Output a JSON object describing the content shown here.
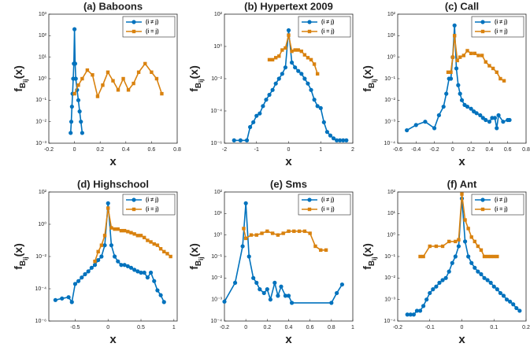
{
  "chart_data": [
    {
      "type": "line",
      "title": "(a)  Baboons",
      "xlabel": "x",
      "ylabel": [
        "f",
        "B",
        "ij",
        "(x)"
      ],
      "log_y": true,
      "legend": "upper right",
      "xlim": [
        -0.2,
        0.8
      ],
      "xticks": [
        -0.2,
        0,
        0.2,
        0.4,
        0.6,
        0.8
      ],
      "ylim": [
        0.001,
        1000
      ],
      "yticks": [
        {
          "value": 0.001,
          "label": "10⁻³"
        },
        {
          "value": 0.01,
          "label": "10⁻²"
        },
        {
          "value": 0.1,
          "label": "10⁻¹"
        },
        {
          "value": 1,
          "label": "10⁰"
        },
        {
          "value": 10,
          "label": "10¹"
        },
        {
          "value": 100,
          "label": "10²"
        },
        {
          "value": 1000,
          "label": "10³"
        }
      ],
      "series": [
        {
          "name": "(i ≠ j)",
          "color": "#0072bd",
          "marker": "circle",
          "x": [
            -0.03,
            -0.025,
            -0.02,
            -0.015,
            -0.01,
            -0.005,
            0,
            0.005,
            0.01,
            0.02,
            0.03,
            0.04,
            0.05,
            0.06
          ],
          "values": [
            0.003,
            0.01,
            0.05,
            0.2,
            1,
            5,
            200,
            5,
            1,
            0.3,
            0.1,
            0.03,
            0.01,
            0.003
          ]
        },
        {
          "name": "(i = j)",
          "color": "#d9820f",
          "marker": "square",
          "x": [
            0,
            0.03,
            0.06,
            0.1,
            0.14,
            0.18,
            0.22,
            0.26,
            0.3,
            0.34,
            0.38,
            0.42,
            0.46,
            0.5,
            0.55,
            0.6,
            0.64,
            0.68
          ],
          "values": [
            0.2,
            0.5,
            1,
            2.5,
            1.5,
            0.15,
            0.5,
            2,
            0.8,
            0.3,
            1,
            0.3,
            0.6,
            2,
            5,
            2,
            1,
            0.2
          ]
        }
      ]
    },
    {
      "type": "line",
      "title": "(b)  Hypertext 2009",
      "xlabel": "x",
      "ylabel": [
        "f",
        "B",
        "ij",
        "(x)"
      ],
      "log_y": true,
      "legend": "upper right",
      "xlim": [
        -2,
        2
      ],
      "xticks": [
        -2,
        -1,
        0,
        1,
        2
      ],
      "ylim": [
        1e-06,
        100
      ],
      "yticks": [
        {
          "value": 1e-06,
          "label": "10⁻⁶"
        },
        {
          "value": 0.0001,
          "label": "10⁻⁴"
        },
        {
          "value": 0.01,
          "label": "10⁻²"
        },
        {
          "value": 1,
          "label": "10⁰"
        },
        {
          "value": 100,
          "label": "10²"
        }
      ],
      "series": [
        {
          "name": "(i ≠ j)",
          "color": "#0072bd",
          "marker": "circle",
          "x": [
            -1.7,
            -1.5,
            -1.3,
            -1.2,
            -1.1,
            -1,
            -0.9,
            -0.8,
            -0.7,
            -0.6,
            -0.5,
            -0.4,
            -0.3,
            -0.2,
            -0.1,
            0,
            0.1,
            0.2,
            0.3,
            0.4,
            0.5,
            0.6,
            0.7,
            0.8,
            0.9,
            1,
            1.1,
            1.2,
            1.3,
            1.4,
            1.5,
            1.6,
            1.7,
            1.8
          ],
          "values": [
            1.5e-06,
            1.5e-06,
            1.5e-06,
            1e-05,
            2e-05,
            5e-05,
            7e-05,
            0.0002,
            0.0005,
            0.001,
            0.002,
            0.005,
            0.01,
            0.02,
            0.05,
            10,
            0.1,
            0.05,
            0.03,
            0.02,
            0.01,
            0.005,
            0.002,
            0.0005,
            0.0002,
            0.00015,
            2e-05,
            5e-06,
            3e-06,
            2e-06,
            1.5e-06,
            1.5e-06,
            1.5e-06,
            1.5e-06
          ]
        },
        {
          "name": "(i = j)",
          "color": "#d9820f",
          "marker": "square",
          "x": [
            -0.6,
            -0.5,
            -0.4,
            -0.3,
            -0.2,
            -0.1,
            0,
            0.1,
            0.2,
            0.3,
            0.4,
            0.5,
            0.6,
            0.7,
            0.8,
            0.9
          ],
          "values": [
            0.15,
            0.15,
            0.2,
            0.25,
            0.6,
            0.8,
            5,
            0.5,
            0.6,
            0.6,
            0.5,
            0.3,
            0.2,
            0.15,
            0.08,
            0.02
          ]
        }
      ]
    },
    {
      "type": "line",
      "title": "(c)  Call",
      "xlabel": "x",
      "ylabel": [
        "f",
        "B",
        "ij",
        "(x)"
      ],
      "log_y": true,
      "legend": "upper right",
      "xlim": [
        -0.6,
        0.8
      ],
      "xticks": [
        -0.6,
        -0.4,
        -0.2,
        0,
        0.2,
        0.4,
        0.6,
        0.8
      ],
      "ylim": [
        0.0001,
        100
      ],
      "yticks": [
        {
          "value": 0.0001,
          "label": "10⁻⁴"
        },
        {
          "value": 0.001,
          "label": "10⁻³"
        },
        {
          "value": 0.01,
          "label": "10⁻²"
        },
        {
          "value": 0.1,
          "label": "10⁻¹"
        },
        {
          "value": 1,
          "label": "10⁰"
        },
        {
          "value": 10,
          "label": "10¹"
        },
        {
          "value": 100,
          "label": "10²"
        }
      ],
      "series": [
        {
          "name": "(i ≠ j)",
          "color": "#0072bd",
          "marker": "circle",
          "x": [
            -0.5,
            -0.4,
            -0.3,
            -0.2,
            -0.15,
            -0.1,
            -0.07,
            -0.04,
            -0.02,
            0,
            0.02,
            0.04,
            0.06,
            0.08,
            0.1,
            0.13,
            0.16,
            0.2,
            0.23,
            0.26,
            0.3,
            0.33,
            0.36,
            0.4,
            0.43,
            0.46,
            0.48,
            0.5,
            0.55,
            0.6,
            0.62
          ],
          "values": [
            0.0004,
            0.0007,
            0.001,
            0.0005,
            0.002,
            0.005,
            0.02,
            0.1,
            0.1,
            1,
            30,
            0.3,
            0.05,
            0.02,
            0.01,
            0.006,
            0.005,
            0.004,
            0.003,
            0.0025,
            0.002,
            0.0015,
            0.0012,
            0.001,
            0.0015,
            0.0015,
            0.0005,
            0.002,
            0.001,
            0.0012,
            0.0012
          ]
        },
        {
          "name": "(i = j)",
          "color": "#d9820f",
          "marker": "square",
          "x": [
            -0.05,
            -0.02,
            0,
            0.02,
            0.05,
            0.08,
            0.12,
            0.16,
            0.2,
            0.24,
            0.28,
            0.32,
            0.36,
            0.4,
            0.44,
            0.48,
            0.52,
            0.56
          ],
          "values": [
            0.2,
            0.2,
            1,
            10,
            0.7,
            1,
            1.2,
            2,
            1.5,
            1.5,
            1.2,
            1.2,
            0.6,
            0.4,
            0.3,
            0.2,
            0.1,
            0.08
          ]
        }
      ]
    },
    {
      "type": "line",
      "title": "(d)  Highschool",
      "xlabel": "x",
      "ylabel": [
        "f",
        "B",
        "ij",
        "(x)"
      ],
      "log_y": true,
      "legend": "upper right",
      "xlim": [
        -0.9,
        1.05
      ],
      "xticks": [
        -0.5,
        0,
        0.5,
        1
      ],
      "ylim": [
        1e-06,
        100
      ],
      "yticks": [
        {
          "value": 1e-06,
          "label": "10⁻⁶"
        },
        {
          "value": 0.0001,
          "label": "10⁻⁴"
        },
        {
          "value": 0.01,
          "label": "10⁻²"
        },
        {
          "value": 1,
          "label": "10⁰"
        },
        {
          "value": 100,
          "label": "10²"
        }
      ],
      "series": [
        {
          "name": "(i ≠ j)",
          "color": "#0072bd",
          "marker": "circle",
          "x": [
            -0.8,
            -0.7,
            -0.6,
            -0.55,
            -0.5,
            -0.45,
            -0.4,
            -0.35,
            -0.3,
            -0.25,
            -0.2,
            -0.15,
            -0.1,
            -0.05,
            0,
            0.05,
            0.1,
            0.15,
            0.2,
            0.25,
            0.3,
            0.35,
            0.4,
            0.45,
            0.5,
            0.55,
            0.6,
            0.65,
            0.7,
            0.75,
            0.8,
            0.85
          ],
          "values": [
            2e-05,
            2.5e-05,
            3e-05,
            1.5e-05,
            0.0002,
            0.0003,
            0.0005,
            0.0008,
            0.0012,
            0.002,
            0.003,
            0.006,
            0.01,
            0.05,
            20,
            0.05,
            0.01,
            0.005,
            0.003,
            0.003,
            0.0025,
            0.002,
            0.0015,
            0.0012,
            0.001,
            0.001,
            0.0005,
            0.001,
            0.0003,
            8e-05,
            4e-05,
            1.5e-05
          ]
        },
        {
          "name": "(i = j)",
          "color": "#d9820f",
          "marker": "square",
          "x": [
            -0.2,
            -0.15,
            -0.1,
            -0.05,
            0,
            0.05,
            0.1,
            0.15,
            0.2,
            0.25,
            0.3,
            0.35,
            0.4,
            0.45,
            0.5,
            0.55,
            0.6,
            0.65,
            0.7,
            0.75,
            0.8,
            0.85,
            0.9,
            0.95
          ],
          "values": [
            0.005,
            0.02,
            0.05,
            0.2,
            10,
            0.6,
            0.5,
            0.5,
            0.4,
            0.4,
            0.35,
            0.3,
            0.25,
            0.2,
            0.2,
            0.15,
            0.1,
            0.08,
            0.06,
            0.05,
            0.03,
            0.02,
            0.015,
            0.01
          ]
        }
      ]
    },
    {
      "type": "line",
      "title": "(e)  Sms",
      "xlabel": "x",
      "ylabel": [
        "f",
        "B",
        "ij",
        "(x)"
      ],
      "log_y": true,
      "legend": "upper right",
      "xlim": [
        -0.2,
        1
      ],
      "xticks": [
        -0.2,
        0,
        0.2,
        0.4,
        0.6,
        0.8,
        1
      ],
      "ylim": [
        0.0001,
        100
      ],
      "yticks": [
        {
          "value": 0.0001,
          "label": "10⁻⁴"
        },
        {
          "value": 0.001,
          "label": "10⁻³"
        },
        {
          "value": 0.01,
          "label": "10⁻²"
        },
        {
          "value": 0.1,
          "label": "10⁻¹"
        },
        {
          "value": 1,
          "label": "10⁰"
        },
        {
          "value": 10,
          "label": "10¹"
        },
        {
          "value": 100,
          "label": "10²"
        }
      ],
      "series": [
        {
          "name": "(i ≠ j)",
          "color": "#0072bd",
          "marker": "circle",
          "x": [
            -0.2,
            -0.1,
            -0.03,
            0,
            0.03,
            0.07,
            0.1,
            0.13,
            0.17,
            0.2,
            0.23,
            0.27,
            0.3,
            0.33,
            0.37,
            0.4,
            0.43,
            0.8,
            0.85,
            0.9
          ],
          "values": [
            0.0008,
            0.006,
            0.3,
            30,
            0.1,
            0.01,
            0.006,
            0.003,
            0.002,
            0.003,
            0.001,
            0.006,
            0.0015,
            0.004,
            0.0015,
            0.0015,
            0.0007,
            0.0007,
            0.002,
            0.005
          ]
        },
        {
          "name": "(i = j)",
          "color": "#d9820f",
          "marker": "square",
          "x": [
            -0.02,
            0,
            0.05,
            0.1,
            0.15,
            0.2,
            0.25,
            0.3,
            0.35,
            0.4,
            0.45,
            0.5,
            0.55,
            0.6,
            0.65,
            0.7,
            0.75
          ],
          "values": [
            2,
            0.7,
            1,
            1,
            1.2,
            1.5,
            1.2,
            1,
            1.2,
            1.5,
            1.5,
            1.5,
            1.5,
            1.2,
            0.3,
            0.2,
            0.2
          ]
        }
      ]
    },
    {
      "type": "line",
      "title": "(f)  Ant",
      "xlabel": "x",
      "ylabel": [
        "f",
        "B",
        "ij",
        "(x)"
      ],
      "log_y": true,
      "legend": "upper right",
      "xlim": [
        -0.2,
        0.2
      ],
      "xticks": [
        -0.2,
        -0.1,
        0,
        0.1,
        0.2
      ],
      "ylim": [
        0.0001,
        100
      ],
      "yticks": [
        {
          "value": 0.0001,
          "label": "10⁻⁴"
        },
        {
          "value": 0.001,
          "label": "10⁻³"
        },
        {
          "value": 0.01,
          "label": "10⁻²"
        },
        {
          "value": 0.1,
          "label": "10⁻¹"
        },
        {
          "value": 1,
          "label": "10⁰"
        },
        {
          "value": 10,
          "label": "10¹"
        },
        {
          "value": 100,
          "label": "10²"
        }
      ],
      "series": [
        {
          "name": "(i ≠ j)",
          "color": "#0072bd",
          "marker": "circle",
          "x": [
            -0.17,
            -0.16,
            -0.15,
            -0.14,
            -0.13,
            -0.12,
            -0.11,
            -0.1,
            -0.09,
            -0.08,
            -0.07,
            -0.06,
            -0.05,
            -0.04,
            -0.03,
            -0.02,
            -0.01,
            0,
            0.01,
            0.02,
            0.03,
            0.04,
            0.05,
            0.06,
            0.07,
            0.08,
            0.09,
            0.1,
            0.11,
            0.12,
            0.13,
            0.14,
            0.15,
            0.16,
            0.17,
            0.18
          ],
          "values": [
            0.0002,
            0.0002,
            0.0002,
            0.0003,
            0.0003,
            0.0005,
            0.001,
            0.002,
            0.003,
            0.004,
            0.006,
            0.008,
            0.01,
            0.02,
            0.05,
            0.1,
            0.3,
            50,
            0.5,
            0.1,
            0.05,
            0.03,
            0.02,
            0.015,
            0.01,
            0.008,
            0.006,
            0.004,
            0.003,
            0.002,
            0.0015,
            0.001,
            0.0008,
            0.0006,
            0.0004,
            0.0003
          ]
        },
        {
          "name": "(i = j)",
          "color": "#d9820f",
          "marker": "square",
          "x": [
            -0.13,
            -0.12,
            -0.1,
            -0.08,
            -0.06,
            -0.04,
            -0.02,
            -0.01,
            0,
            0.01,
            0.02,
            0.03,
            0.04,
            0.05,
            0.06,
            0.07,
            0.08,
            0.09,
            0.1,
            0.11
          ],
          "values": [
            0.1,
            0.1,
            0.3,
            0.3,
            0.3,
            0.5,
            0.5,
            0.6,
            80,
            5,
            2,
            0.8,
            0.5,
            0.3,
            0.2,
            0.1,
            0.1,
            0.1,
            0.1,
            0.1
          ]
        }
      ]
    }
  ]
}
